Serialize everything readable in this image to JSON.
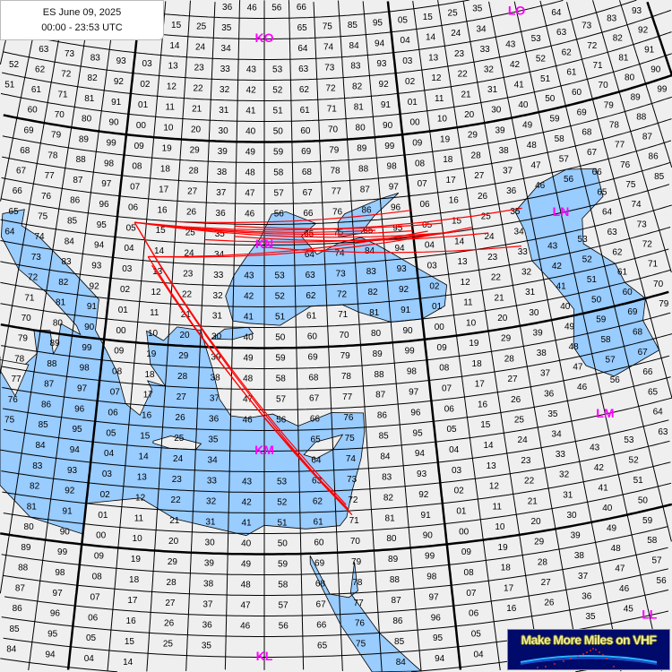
{
  "header": {
    "title": "ES June 09, 2025",
    "time_range": "00:00 - 23:53 UTC"
  },
  "logo": {
    "text": "Make More Miles on VHF"
  },
  "colors": {
    "land": "#efefef",
    "sea": "#99ccff",
    "grid": "#000000",
    "paths": "#ff0000",
    "field_labels": "#ff00ff"
  },
  "fields": [
    {
      "label": "KO",
      "lon": 30,
      "lat": 55
    },
    {
      "label": "LO",
      "lon": 50,
      "lat": 55
    },
    {
      "label": "KN",
      "lon": 30,
      "lat": 45
    },
    {
      "label": "LN",
      "lon": 50,
      "lat": 45
    },
    {
      "label": "KM",
      "lon": 30,
      "lat": 35
    },
    {
      "label": "LM",
      "lon": 50,
      "lat": 35
    },
    {
      "label": "KL",
      "lon": 30,
      "lat": 25
    },
    {
      "label": "LL",
      "lon": 50,
      "lat": 25
    }
  ],
  "paths": [
    [
      [
        21.2,
        45.8
      ],
      [
        42.5,
        45.0
      ]
    ],
    [
      [
        21.2,
        45.8
      ],
      [
        47.5,
        45.6
      ]
    ],
    [
      [
        21.2,
        45.8
      ],
      [
        37.5,
        45.5
      ]
    ],
    [
      [
        21.2,
        45.8
      ],
      [
        40.0,
        45.3
      ]
    ],
    [
      [
        22.3,
        44.2
      ],
      [
        41.0,
        45.2
      ]
    ],
    [
      [
        22.3,
        44.2
      ],
      [
        44.0,
        45.1
      ]
    ],
    [
      [
        28.0,
        45.9
      ],
      [
        42.0,
        45.5
      ]
    ],
    [
      [
        26.0,
        45.2
      ],
      [
        43.0,
        45.0
      ]
    ],
    [
      [
        30.0,
        44.9
      ],
      [
        47.0,
        43.8
      ]
    ],
    [
      [
        28.0,
        45.4
      ],
      [
        45.0,
        44.7
      ]
    ],
    [
      [
        24.0,
        46.0
      ],
      [
        40.0,
        46.3
      ]
    ],
    [
      [
        21.2,
        45.8
      ],
      [
        34.9,
        31.8
      ]
    ],
    [
      [
        21.2,
        45.8
      ],
      [
        34.6,
        32.3
      ]
    ],
    [
      [
        22.3,
        44.2
      ],
      [
        34.9,
        31.8
      ]
    ],
    [
      [
        22.6,
        43.8
      ],
      [
        34.7,
        32.1
      ]
    ]
  ]
}
